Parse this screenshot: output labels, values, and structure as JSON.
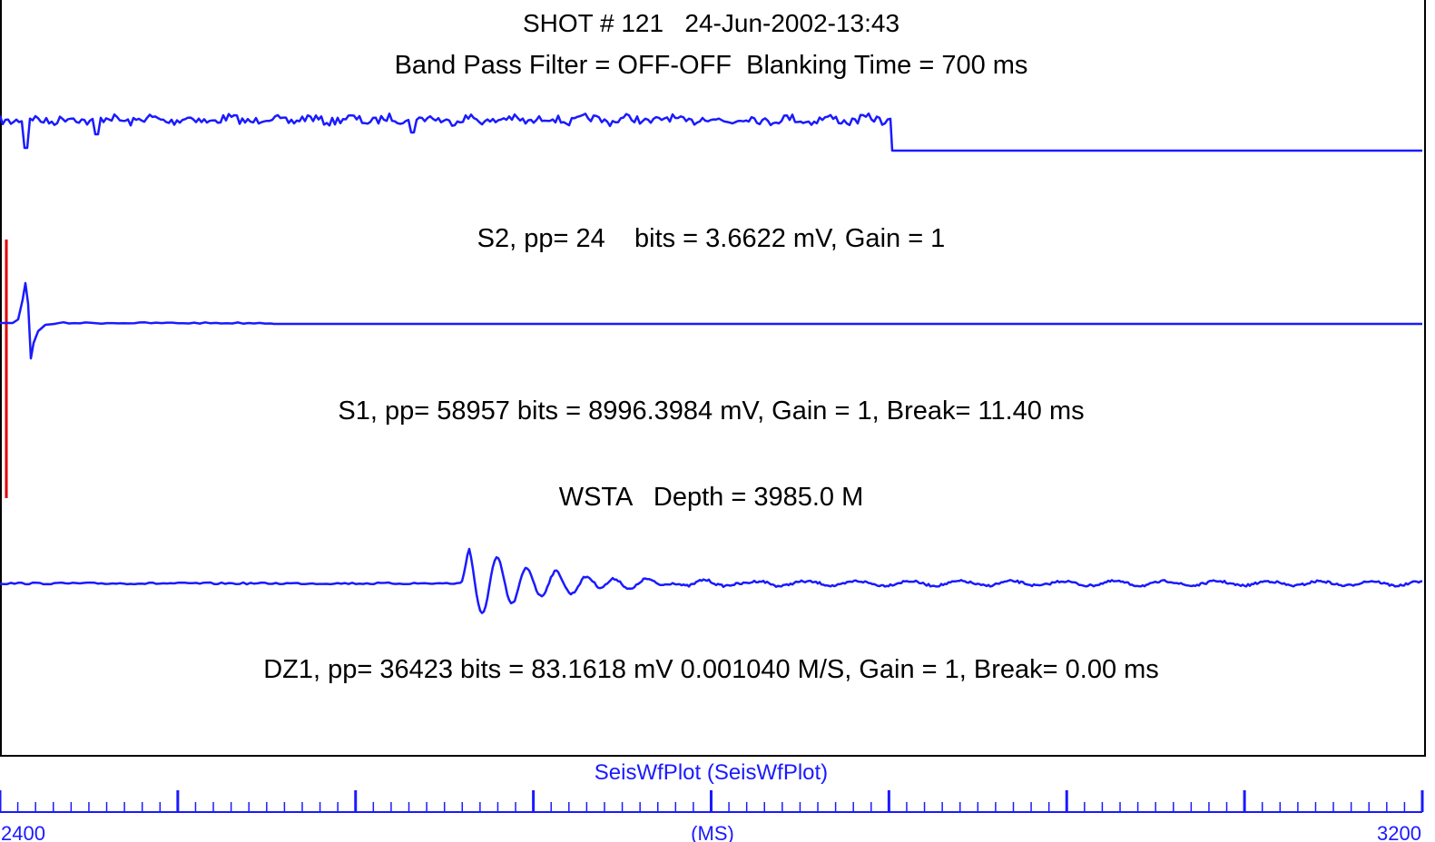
{
  "header": {
    "line1": "SHOT # 121   24-Jun-2002-13:43",
    "line2": "Band Pass Filter = OFF-OFF  Blanking Time = 700 ms"
  },
  "traces": [
    {
      "name": "S2",
      "label": "S2, pp= 24    bits = 3.6622 mV, Gain = 1"
    },
    {
      "name": "S1",
      "label": "S1, pp= 58957 bits = 8996.3984 mV, Gain = 1, Break= 11.40 ms"
    },
    {
      "name": "DZ1",
      "label": "DZ1, pp= 36423 bits = 83.1618 mV 0.001040 M/S, Gain = 1, Break= 0.00 ms"
    }
  ],
  "station_label": "WSTA   Depth = 3985.0 M",
  "footer": {
    "app_title": "SeisWfPlot (SeisWfPlot)"
  },
  "colors": {
    "trace": "#1a1aff",
    "marker": "#dd0000",
    "axis": "#1a1aff"
  },
  "chart_data": {
    "type": "line",
    "xlabel": "(MS)",
    "xlim": [
      2400,
      3200
    ],
    "x_tick_labels": [
      "2400",
      "3200"
    ],
    "series": [
      {
        "name": "S2"
      },
      {
        "name": "S1"
      },
      {
        "name": "DZ1"
      }
    ],
    "grid": false
  }
}
